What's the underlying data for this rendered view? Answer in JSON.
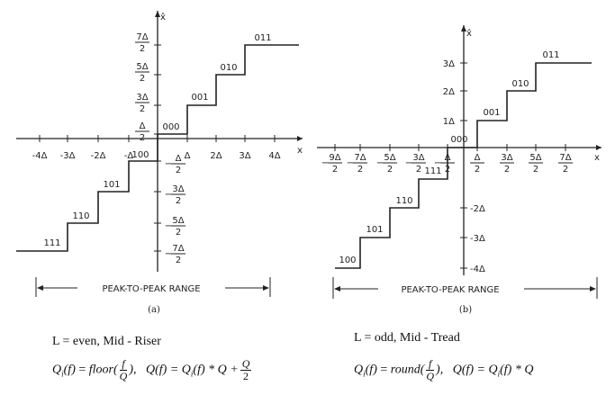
{
  "panel_a": {
    "axis_y": "x̂",
    "axis_x": "x",
    "x_ticks": [
      "-4Δ",
      "-3Δ",
      "-2Δ",
      "-Δ",
      "Δ",
      "2Δ",
      "3Δ",
      "4Δ"
    ],
    "y_ticks_pos": [
      {
        "n": "Δ",
        "d": "2"
      },
      {
        "n": "3Δ",
        "d": "2"
      },
      {
        "n": "5Δ",
        "d": "2"
      },
      {
        "n": "7Δ",
        "d": "2"
      }
    ],
    "y_ticks_neg": [
      {
        "n": "Δ",
        "d": "2"
      },
      {
        "n": "3Δ",
        "d": "2"
      },
      {
        "n": "5Δ",
        "d": "2"
      },
      {
        "n": "7Δ",
        "d": "2"
      }
    ],
    "codes": [
      "111",
      "110",
      "101",
      "100",
      "000",
      "001",
      "010",
      "011"
    ],
    "range_label": "PEAK-TO-PEAK RANGE",
    "caption": "(a)"
  },
  "panel_b": {
    "axis_y": "x̂",
    "axis_x": "x",
    "x_ticks_neg": [
      {
        "n": "9Δ",
        "d": "2"
      },
      {
        "n": "7Δ",
        "d": "2"
      },
      {
        "n": "5Δ",
        "d": "2"
      },
      {
        "n": "3Δ",
        "d": "2"
      },
      {
        "n": "Δ",
        "d": "2"
      }
    ],
    "x_ticks_pos": [
      {
        "n": "Δ",
        "d": "2"
      },
      {
        "n": "3Δ",
        "d": "2"
      },
      {
        "n": "5Δ",
        "d": "2"
      },
      {
        "n": "7Δ",
        "d": "2"
      }
    ],
    "y_ticks": [
      "3Δ",
      "2Δ",
      "1Δ",
      "-2Δ",
      "-3Δ",
      "-4Δ"
    ],
    "codes": [
      "100",
      "101",
      "110",
      "111",
      "000",
      "001",
      "010",
      "011"
    ],
    "range_label": "PEAK-TO-PEAK RANGE",
    "caption": "(b)"
  },
  "caption_left": {
    "title": "L = even, Mid - Riser",
    "q_lhs": "Q",
    "q_sub": "i",
    "arg": "(f)",
    "fn": "floor(",
    "frac_num": "f",
    "frac_den": "Q",
    "close": "),",
    "q2": "Q(f) = Q",
    "q2_sub": "i",
    "tail": "(f) * Q +",
    "frac2_num": "Q",
    "frac2_den": "2"
  },
  "caption_right": {
    "title": "L = odd, Mid - Tread",
    "q_lhs": "Q",
    "q_sub": "i",
    "arg": "(f)",
    "fn": "round(",
    "frac_num": "f",
    "frac_den": "Q",
    "close": "),",
    "q2": "Q(f) = Q",
    "q2_sub": "i",
    "tail": "(f) * Q"
  }
}
